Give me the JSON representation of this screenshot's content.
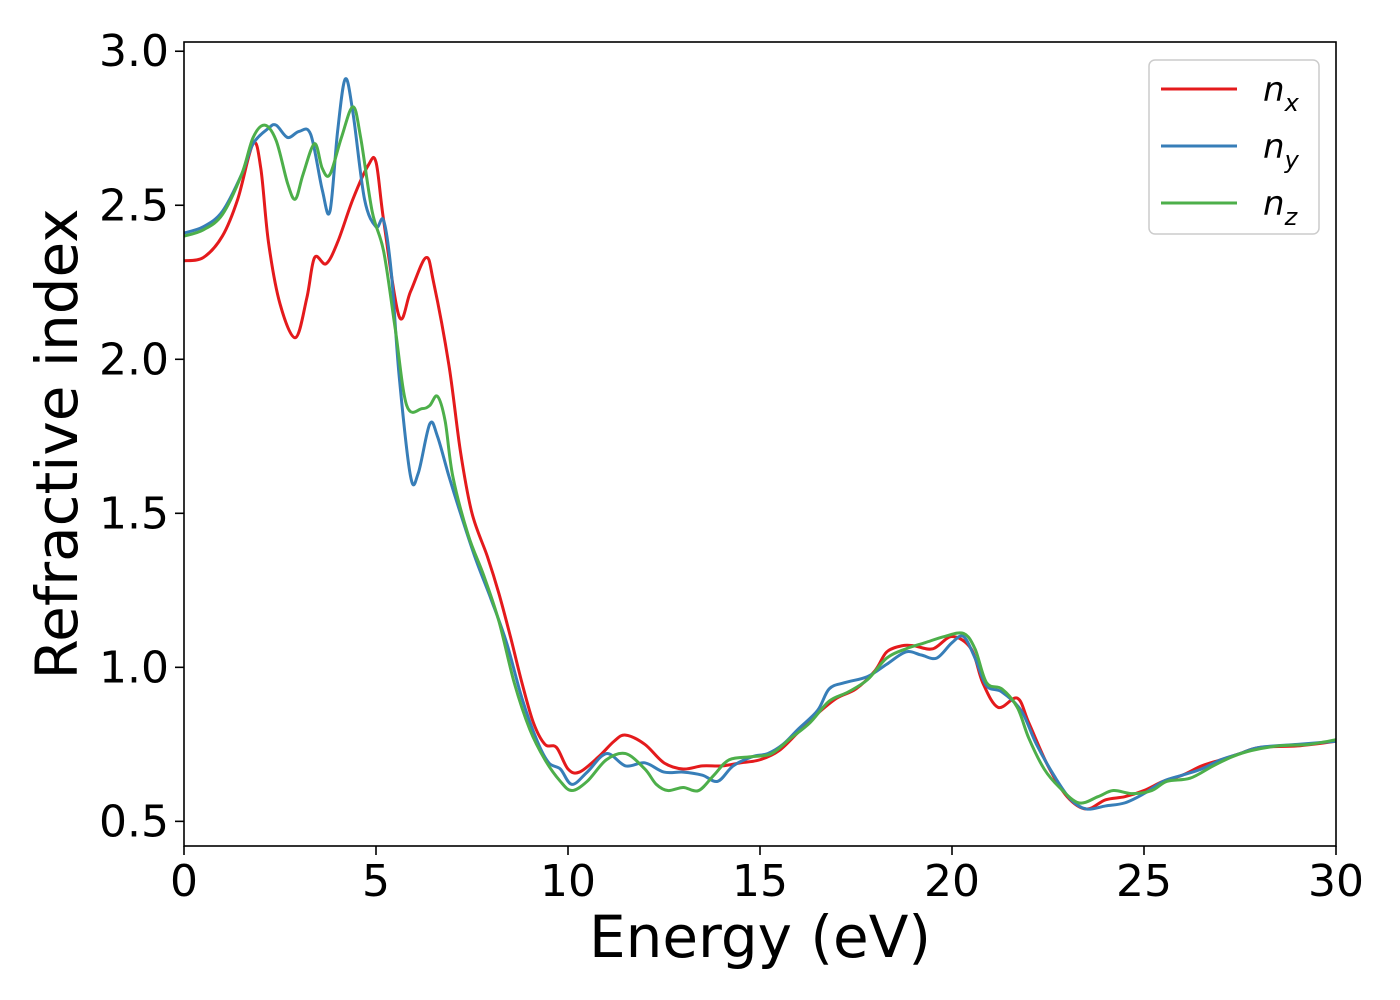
{
  "chart_data": {
    "type": "line",
    "xlabel": "Energy (eV)",
    "ylabel": "Refractive index",
    "xlim": [
      0,
      30
    ],
    "ylim": [
      0.42,
      3.03
    ],
    "xticks": [
      0,
      5,
      10,
      15,
      20,
      25,
      30
    ],
    "xtick_labels": [
      "0",
      "5",
      "10",
      "15",
      "20",
      "25",
      "30"
    ],
    "yticks": [
      0.5,
      1.0,
      1.5,
      2.0,
      2.5,
      3.0
    ],
    "ytick_labels": [
      "0.5",
      "1.0",
      "1.5",
      "2.0",
      "2.5",
      "3.0"
    ],
    "grid": false,
    "legend_position": "top-right",
    "series": [
      {
        "name": "n",
        "subscript": "x",
        "color": "#e41a1c",
        "points": [
          [
            0,
            2.32
          ],
          [
            0.5,
            2.33
          ],
          [
            1.0,
            2.4
          ],
          [
            1.4,
            2.52
          ],
          [
            1.8,
            2.7
          ],
          [
            2.0,
            2.62
          ],
          [
            2.2,
            2.38
          ],
          [
            2.5,
            2.18
          ],
          [
            2.9,
            2.07
          ],
          [
            3.2,
            2.2
          ],
          [
            3.4,
            2.33
          ],
          [
            3.7,
            2.31
          ],
          [
            4.0,
            2.38
          ],
          [
            4.4,
            2.52
          ],
          [
            4.8,
            2.63
          ],
          [
            5.0,
            2.64
          ],
          [
            5.2,
            2.45
          ],
          [
            5.6,
            2.14
          ],
          [
            5.9,
            2.22
          ],
          [
            6.3,
            2.33
          ],
          [
            6.5,
            2.25
          ],
          [
            6.9,
            1.98
          ],
          [
            7.2,
            1.7
          ],
          [
            7.5,
            1.5
          ],
          [
            7.9,
            1.36
          ],
          [
            8.2,
            1.24
          ],
          [
            8.5,
            1.1
          ],
          [
            8.8,
            0.95
          ],
          [
            9.1,
            0.82
          ],
          [
            9.4,
            0.75
          ],
          [
            9.7,
            0.74
          ],
          [
            10.0,
            0.67
          ],
          [
            10.3,
            0.66
          ],
          [
            10.8,
            0.71
          ],
          [
            11.2,
            0.76
          ],
          [
            11.5,
            0.78
          ],
          [
            12.0,
            0.75
          ],
          [
            12.5,
            0.69
          ],
          [
            13.0,
            0.67
          ],
          [
            13.5,
            0.68
          ],
          [
            14.0,
            0.68
          ],
          [
            14.5,
            0.69
          ],
          [
            15.0,
            0.7
          ],
          [
            15.5,
            0.73
          ],
          [
            16.0,
            0.79
          ],
          [
            16.5,
            0.85
          ],
          [
            17.0,
            0.9
          ],
          [
            17.5,
            0.93
          ],
          [
            18.0,
            0.99
          ],
          [
            18.3,
            1.05
          ],
          [
            18.7,
            1.07
          ],
          [
            19.0,
            1.07
          ],
          [
            19.5,
            1.06
          ],
          [
            20.0,
            1.1
          ],
          [
            20.5,
            1.06
          ],
          [
            20.8,
            0.95
          ],
          [
            21.2,
            0.87
          ],
          [
            21.7,
            0.9
          ],
          [
            22.0,
            0.82
          ],
          [
            22.5,
            0.68
          ],
          [
            23.0,
            0.58
          ],
          [
            23.5,
            0.54
          ],
          [
            24.0,
            0.57
          ],
          [
            24.5,
            0.58
          ],
          [
            25.0,
            0.6
          ],
          [
            25.5,
            0.63
          ],
          [
            26.0,
            0.65
          ],
          [
            26.5,
            0.68
          ],
          [
            27.0,
            0.7
          ],
          [
            27.5,
            0.72
          ],
          [
            28.0,
            0.74
          ],
          [
            29.0,
            0.745
          ],
          [
            30.0,
            0.76
          ]
        ]
      },
      {
        "name": "n",
        "subscript": "y",
        "color": "#377eb8",
        "points": [
          [
            0,
            2.41
          ],
          [
            0.5,
            2.43
          ],
          [
            1.0,
            2.48
          ],
          [
            1.5,
            2.6
          ],
          [
            1.8,
            2.7
          ],
          [
            2.2,
            2.75
          ],
          [
            2.4,
            2.76
          ],
          [
            2.7,
            2.72
          ],
          [
            3.0,
            2.74
          ],
          [
            3.3,
            2.73
          ],
          [
            3.6,
            2.55
          ],
          [
            3.8,
            2.48
          ],
          [
            4.0,
            2.74
          ],
          [
            4.2,
            2.91
          ],
          [
            4.4,
            2.8
          ],
          [
            4.7,
            2.52
          ],
          [
            5.0,
            2.43
          ],
          [
            5.2,
            2.45
          ],
          [
            5.4,
            2.28
          ],
          [
            5.6,
            1.95
          ],
          [
            5.9,
            1.62
          ],
          [
            6.1,
            1.63
          ],
          [
            6.4,
            1.79
          ],
          [
            6.6,
            1.75
          ],
          [
            6.9,
            1.62
          ],
          [
            7.2,
            1.5
          ],
          [
            7.6,
            1.35
          ],
          [
            8.0,
            1.22
          ],
          [
            8.4,
            1.08
          ],
          [
            8.8,
            0.9
          ],
          [
            9.2,
            0.76
          ],
          [
            9.5,
            0.69
          ],
          [
            9.8,
            0.67
          ],
          [
            10.1,
            0.62
          ],
          [
            10.5,
            0.66
          ],
          [
            11.0,
            0.72
          ],
          [
            11.5,
            0.68
          ],
          [
            12.0,
            0.69
          ],
          [
            12.5,
            0.66
          ],
          [
            13.0,
            0.66
          ],
          [
            13.5,
            0.65
          ],
          [
            13.9,
            0.63
          ],
          [
            14.3,
            0.68
          ],
          [
            14.8,
            0.71
          ],
          [
            15.2,
            0.72
          ],
          [
            15.6,
            0.75
          ],
          [
            16.0,
            0.8
          ],
          [
            16.5,
            0.86
          ],
          [
            16.8,
            0.93
          ],
          [
            17.2,
            0.95
          ],
          [
            17.8,
            0.97
          ],
          [
            18.3,
            1.01
          ],
          [
            18.8,
            1.05
          ],
          [
            19.2,
            1.04
          ],
          [
            19.6,
            1.03
          ],
          [
            20.0,
            1.08
          ],
          [
            20.3,
            1.1
          ],
          [
            20.6,
            1.03
          ],
          [
            20.9,
            0.94
          ],
          [
            21.3,
            0.92
          ],
          [
            21.8,
            0.86
          ],
          [
            22.2,
            0.75
          ],
          [
            22.7,
            0.64
          ],
          [
            23.1,
            0.57
          ],
          [
            23.5,
            0.54
          ],
          [
            24.0,
            0.55
          ],
          [
            24.5,
            0.56
          ],
          [
            25.0,
            0.59
          ],
          [
            25.5,
            0.63
          ],
          [
            26.0,
            0.65
          ],
          [
            26.5,
            0.67
          ],
          [
            27.0,
            0.7
          ],
          [
            27.5,
            0.72
          ],
          [
            28.0,
            0.74
          ],
          [
            29.0,
            0.75
          ],
          [
            30.0,
            0.76
          ]
        ]
      },
      {
        "name": "n",
        "subscript": "z",
        "color": "#4daf4a",
        "points": [
          [
            0,
            2.4
          ],
          [
            0.5,
            2.42
          ],
          [
            1.0,
            2.47
          ],
          [
            1.5,
            2.6
          ],
          [
            1.8,
            2.72
          ],
          [
            2.1,
            2.76
          ],
          [
            2.4,
            2.71
          ],
          [
            2.7,
            2.57
          ],
          [
            2.9,
            2.52
          ],
          [
            3.1,
            2.6
          ],
          [
            3.4,
            2.7
          ],
          [
            3.6,
            2.62
          ],
          [
            3.8,
            2.6
          ],
          [
            4.1,
            2.72
          ],
          [
            4.4,
            2.82
          ],
          [
            4.6,
            2.72
          ],
          [
            4.9,
            2.48
          ],
          [
            5.2,
            2.35
          ],
          [
            5.5,
            2.1
          ],
          [
            5.8,
            1.85
          ],
          [
            6.2,
            1.84
          ],
          [
            6.4,
            1.85
          ],
          [
            6.6,
            1.88
          ],
          [
            6.8,
            1.8
          ],
          [
            7.0,
            1.62
          ],
          [
            7.4,
            1.43
          ],
          [
            7.8,
            1.3
          ],
          [
            8.2,
            1.15
          ],
          [
            8.6,
            0.95
          ],
          [
            9.0,
            0.8
          ],
          [
            9.4,
            0.7
          ],
          [
            9.8,
            0.63
          ],
          [
            10.1,
            0.6
          ],
          [
            10.5,
            0.63
          ],
          [
            11.0,
            0.7
          ],
          [
            11.5,
            0.72
          ],
          [
            12.0,
            0.67
          ],
          [
            12.3,
            0.62
          ],
          [
            12.6,
            0.6
          ],
          [
            13.0,
            0.61
          ],
          [
            13.4,
            0.6
          ],
          [
            13.8,
            0.65
          ],
          [
            14.2,
            0.7
          ],
          [
            14.8,
            0.71
          ],
          [
            15.3,
            0.72
          ],
          [
            15.8,
            0.77
          ],
          [
            16.3,
            0.82
          ],
          [
            16.8,
            0.89
          ],
          [
            17.3,
            0.92
          ],
          [
            17.8,
            0.96
          ],
          [
            18.3,
            1.03
          ],
          [
            18.8,
            1.06
          ],
          [
            19.3,
            1.08
          ],
          [
            19.8,
            1.1
          ],
          [
            20.3,
            1.11
          ],
          [
            20.6,
            1.06
          ],
          [
            20.9,
            0.95
          ],
          [
            21.3,
            0.93
          ],
          [
            21.7,
            0.87
          ],
          [
            22.0,
            0.77
          ],
          [
            22.4,
            0.67
          ],
          [
            22.8,
            0.61
          ],
          [
            23.3,
            0.56
          ],
          [
            23.8,
            0.58
          ],
          [
            24.2,
            0.6
          ],
          [
            24.7,
            0.59
          ],
          [
            25.2,
            0.6
          ],
          [
            25.6,
            0.63
          ],
          [
            26.2,
            0.64
          ],
          [
            26.8,
            0.68
          ],
          [
            27.3,
            0.71
          ],
          [
            27.8,
            0.73
          ],
          [
            28.5,
            0.745
          ],
          [
            29.3,
            0.75
          ],
          [
            30.0,
            0.765
          ]
        ]
      }
    ]
  }
}
